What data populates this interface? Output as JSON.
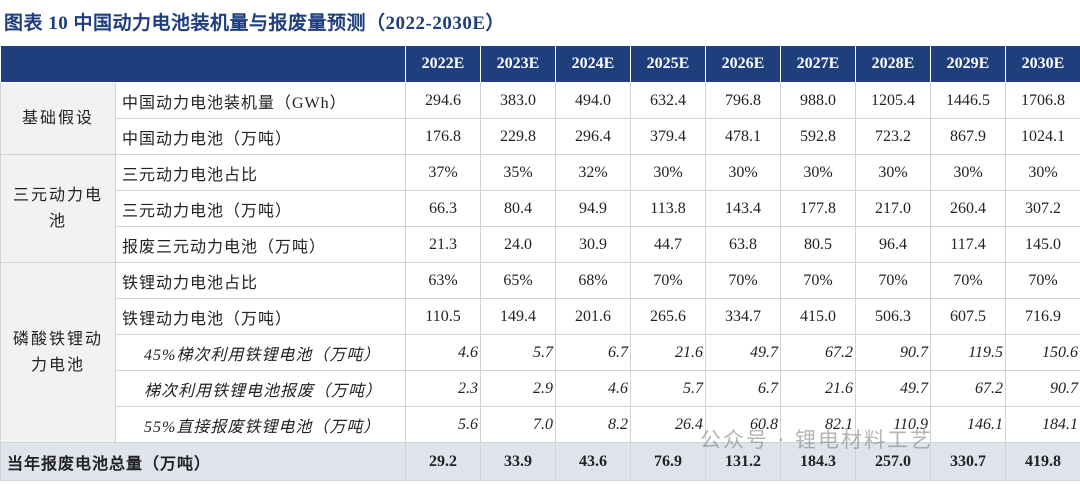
{
  "title": "图表 10  中国动力电池装机量与报废量预测（2022-2030E）",
  "table": {
    "header": [
      "2022E",
      "2023E",
      "2024E",
      "2025E",
      "2026E",
      "2027E",
      "2028E",
      "2029E",
      "2030E"
    ],
    "groups": [
      {
        "label": "基础假设",
        "rows": [
          {
            "label": "中国动力电池装机量（GWh）",
            "values": [
              "294.6",
              "383.0",
              "494.0",
              "632.4",
              "796.8",
              "988.0",
              "1205.4",
              "1446.5",
              "1706.8"
            ]
          },
          {
            "label": "中国动力电池（万吨）",
            "values": [
              "176.8",
              "229.8",
              "296.4",
              "379.4",
              "478.1",
              "592.8",
              "723.2",
              "867.9",
              "1024.1"
            ]
          }
        ]
      },
      {
        "label": "三元动力电池",
        "rows": [
          {
            "label": "三元动力电池占比",
            "values": [
              "37%",
              "35%",
              "32%",
              "30%",
              "30%",
              "30%",
              "30%",
              "30%",
              "30%"
            ]
          },
          {
            "label": "三元动力电池（万吨）",
            "values": [
              "66.3",
              "80.4",
              "94.9",
              "113.8",
              "143.4",
              "177.8",
              "217.0",
              "260.4",
              "307.2"
            ]
          },
          {
            "label": "报废三元动力电池（万吨）",
            "values": [
              "21.3",
              "24.0",
              "30.9",
              "44.7",
              "63.8",
              "80.5",
              "96.4",
              "117.4",
              "145.0"
            ]
          }
        ]
      },
      {
        "label": "磷酸铁锂动力电池",
        "rows": [
          {
            "label": "铁锂动力电池占比",
            "values": [
              "63%",
              "65%",
              "68%",
              "70%",
              "70%",
              "70%",
              "70%",
              "70%",
              "70%"
            ]
          },
          {
            "label": "铁锂动力电池（万吨）",
            "values": [
              "110.5",
              "149.4",
              "201.6",
              "265.6",
              "334.7",
              "415.0",
              "506.3",
              "607.5",
              "716.9"
            ]
          },
          {
            "label": "45%梯次利用铁锂电池（万吨）",
            "italic": true,
            "values": [
              "4.6",
              "5.7",
              "6.7",
              "21.6",
              "49.7",
              "67.2",
              "90.7",
              "119.5",
              "150.6"
            ]
          },
          {
            "label": "梯次利用铁锂电池报废（万吨）",
            "italic": true,
            "values": [
              "2.3",
              "2.9",
              "4.6",
              "5.7",
              "6.7",
              "21.6",
              "49.7",
              "67.2",
              "90.7"
            ]
          },
          {
            "label": "55%直接报废铁锂电池（万吨）",
            "italic": true,
            "values": [
              "5.6",
              "7.0",
              "8.2",
              "26.4",
              "60.8",
              "82.1",
              "110.9",
              "146.1",
              "184.1"
            ]
          }
        ]
      }
    ],
    "total": {
      "label": "当年报废电池总量（万吨）",
      "values": [
        "29.2",
        "33.9",
        "43.6",
        "76.9",
        "131.2",
        "184.3",
        "257.0",
        "330.7",
        "419.8"
      ]
    }
  },
  "watermark": "公众号 · 锂电材料工艺"
}
